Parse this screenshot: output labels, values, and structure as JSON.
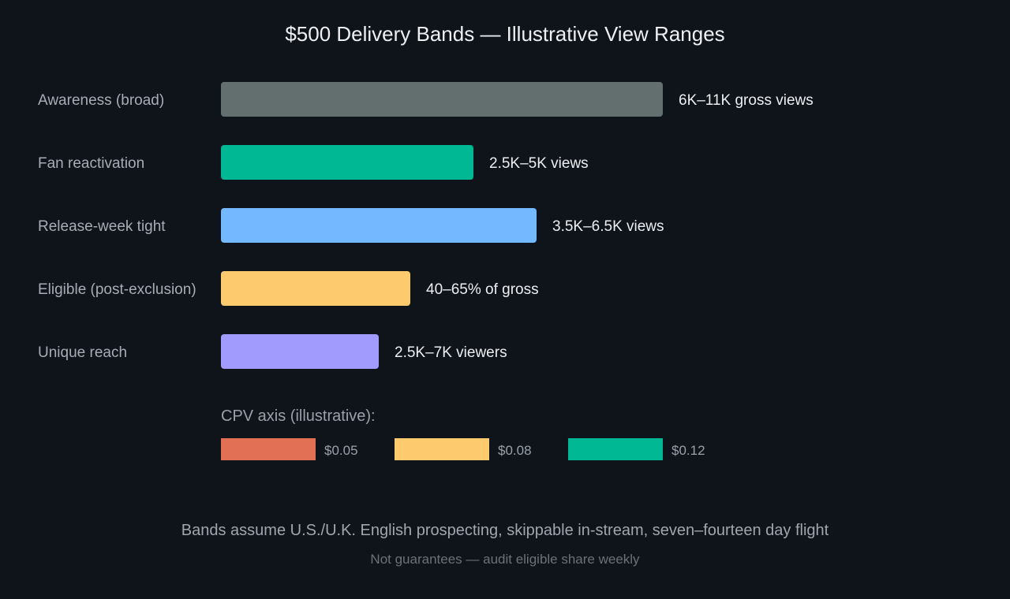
{
  "chart_data": {
    "type": "bar",
    "orientation": "horizontal",
    "title": "$500 Delivery Bands — Illustrative View Ranges",
    "categories": [
      "Awareness (broad)",
      "Fan reactivation",
      "Release-week tight",
      "Eligible (post-exclusion)",
      "Unique reach"
    ],
    "values": [
      7,
      4,
      5,
      3,
      2.5
    ],
    "bar_labels": [
      "6K–11K gross views",
      "2.5K–5K views",
      "3.5K–6.5K views",
      "40–65% of gross",
      "2.5K–7K viewers"
    ],
    "colors": [
      "#636f6f",
      "#00b894",
      "#74b9ff",
      "#fdcb6e",
      "#a29bfe"
    ],
    "xlim": [
      0,
      7
    ],
    "grid": false,
    "legend": {
      "title": "CPV axis (illustrative):",
      "position": "bottom",
      "items": [
        {
          "label": "$0.05",
          "color": "#e17055"
        },
        {
          "label": "$0.08",
          "color": "#fdcb6e"
        },
        {
          "label": "$0.12",
          "color": "#00b894"
        }
      ]
    },
    "footnote": "Bands assume U.S./U.K. English prospecting, skippable in-stream, seven–fourteen day flight",
    "subnote": "Not guarantees — audit eligible share weekly"
  }
}
